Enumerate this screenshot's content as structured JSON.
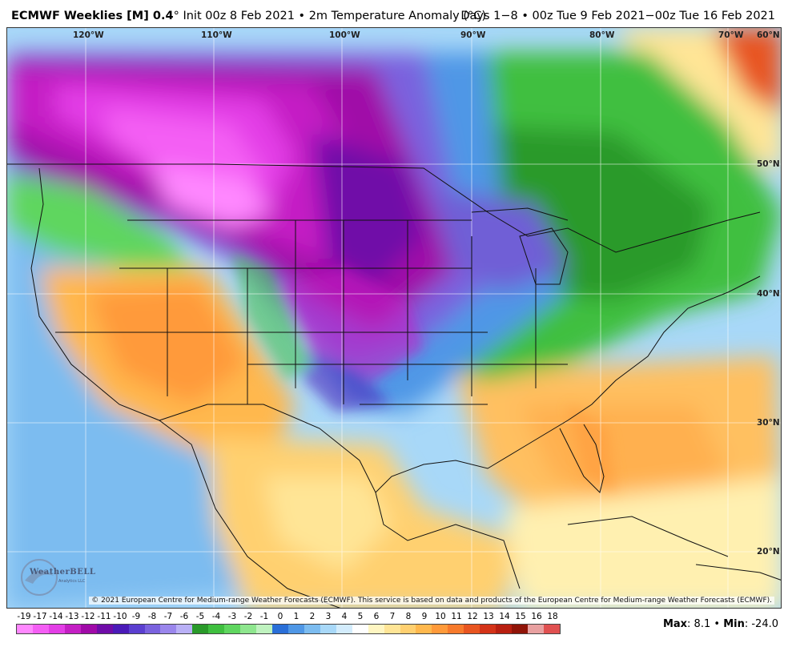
{
  "header": {
    "model_label": "ECMWF Weeklies [M] 0.4",
    "model_degree": "°",
    "init_text": "Init 00z 8 Feb 2021 • 2m Temperature Anomaly (°C)",
    "valid_text": "Days 1−8 • 00z Tue 9 Feb 2021−00z Tue 16 Feb 2021"
  },
  "map": {
    "longitude_labels": [
      "120°W",
      "110°W",
      "100°W",
      "90°W",
      "80°W",
      "70°W",
      "60°N"
    ],
    "latitude_labels": [
      "50°N",
      "40°N",
      "30°N",
      "20°N"
    ],
    "copyright": "© 2021 European Centre for Medium-range Weather Forecasts (ECMWF). This service is based on data and products of the European Centre for Medium-range Weather Forecasts (ECMWF).",
    "logo_text": "WeatherBELL",
    "logo_subtext": "Analytics LLC"
  },
  "colorbar": {
    "ticks": [
      "-19",
      "-17",
      "-14",
      "-13",
      "-12",
      "-11",
      "-10",
      "-9",
      "-8",
      "-7",
      "-6",
      "-5",
      "-4",
      "-3",
      "-2",
      "-1",
      "0",
      "1",
      "2",
      "3",
      "4",
      "5",
      "6",
      "7",
      "8",
      "9",
      "10",
      "11",
      "12",
      "13",
      "14",
      "15",
      "16",
      "18"
    ],
    "colors": [
      "#ff88ff",
      "#f45ef4",
      "#e33ee6",
      "#c41fc4",
      "#a00aa8",
      "#6f0ca8",
      "#4a1ab8",
      "#5b3fd0",
      "#7a62de",
      "#9a86ec",
      "#b9b0f6",
      "#2a9a2a",
      "#3fbf3f",
      "#5fd65f",
      "#8ee68e",
      "#bff2bf",
      "#2a6fd8",
      "#4f97e6",
      "#7cbcf0",
      "#a8d8f8",
      "#d3ecfc",
      "#ffffff",
      "#fff6c2",
      "#ffe596",
      "#ffd070",
      "#ffb84d",
      "#ff9a3a",
      "#f77a2c",
      "#e85520",
      "#d43318",
      "#b81f10",
      "#901408",
      "#e8a0a0",
      "#e05050"
    ]
  },
  "stats": {
    "max_label": "Max",
    "max_value": ": 8.1",
    "separator": "•",
    "min_label": "Min",
    "min_value": ": -24.0"
  }
}
